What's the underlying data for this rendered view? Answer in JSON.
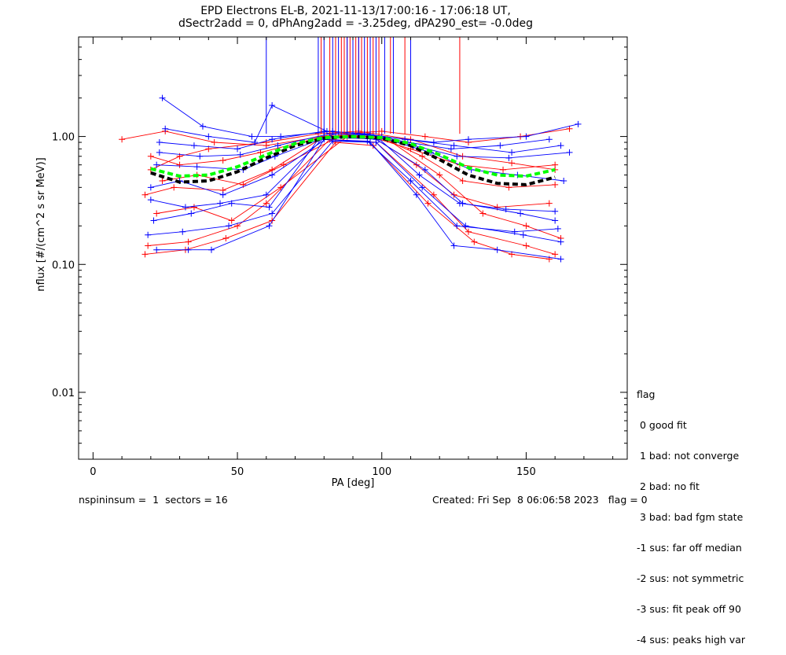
{
  "chart_data": {
    "type": "line",
    "title": "EPD Electrons EL-B, 2021-11-13/17:00:16 - 17:06:18 UT,",
    "subtitle": "dSectr2add = 0, dPhAng2add = -3.25deg, dPA290_est=  -0.0deg",
    "xlabel": "PA [deg]",
    "ylabel": "nflux [#/(cm^2 s sr MeV)]",
    "x_scale": "linear",
    "y_scale": "log",
    "xlim": [
      -5,
      185
    ],
    "ylim": [
      0.003,
      6.0
    ],
    "x_ticks": [
      "0",
      "50",
      "100",
      "150"
    ],
    "y_ticks": [
      "0.01",
      "0.10",
      "1.00"
    ],
    "colors": {
      "red": "#ff0000",
      "blue": "#0000ff",
      "fit_black": "#000000",
      "fit_green": "#00ff00"
    },
    "series": [
      {
        "color": "red",
        "x": [
          20,
          30,
          40,
          60,
          78,
          92,
          110,
          128,
          145,
          160
        ],
        "y": [
          0.55,
          0.7,
          0.8,
          0.9,
          1.05,
          1.1,
          0.95,
          0.7,
          0.62,
          0.55
        ]
      },
      {
        "color": "red",
        "x": [
          18,
          28,
          45,
          62,
          80,
          95,
          112,
          125,
          140,
          158
        ],
        "y": [
          0.35,
          0.4,
          0.38,
          0.55,
          1.0,
          1.05,
          0.6,
          0.35,
          0.28,
          0.3
        ]
      },
      {
        "color": "red",
        "x": [
          19,
          33,
          50,
          60,
          82,
          98,
          118,
          130,
          150,
          160
        ],
        "y": [
          0.14,
          0.15,
          0.2,
          0.3,
          0.95,
          0.9,
          0.35,
          0.18,
          0.14,
          0.12
        ]
      },
      {
        "color": "red",
        "x": [
          10,
          25,
          42,
          60,
          85,
          100,
          115,
          130,
          148,
          165
        ],
        "y": [
          0.95,
          1.1,
          0.9,
          0.85,
          1.05,
          1.1,
          1.0,
          0.9,
          1.0,
          1.15
        ]
      },
      {
        "color": "red",
        "x": [
          22,
          35,
          48,
          65,
          88,
          102,
          120,
          135,
          150,
          162
        ],
        "y": [
          0.25,
          0.28,
          0.22,
          0.4,
          1.0,
          0.95,
          0.5,
          0.25,
          0.2,
          0.16
        ]
      },
      {
        "color": "red",
        "x": [
          20,
          30,
          45,
          58,
          80,
          96,
          110,
          127,
          142,
          160
        ],
        "y": [
          0.7,
          0.6,
          0.65,
          0.75,
          1.0,
          1.0,
          0.8,
          0.6,
          0.55,
          0.6
        ]
      },
      {
        "color": "red",
        "x": [
          18,
          32,
          46,
          62,
          84,
          97,
          116,
          132,
          145,
          158
        ],
        "y": [
          0.12,
          0.13,
          0.16,
          0.22,
          0.9,
          0.85,
          0.3,
          0.15,
          0.12,
          0.11
        ]
      },
      {
        "color": "red",
        "x": [
          24,
          36,
          52,
          66,
          86,
          99,
          114,
          128,
          144,
          160
        ],
        "y": [
          0.45,
          0.5,
          0.42,
          0.6,
          1.02,
          1.0,
          0.7,
          0.45,
          0.4,
          0.42
        ]
      },
      {
        "color": "blue",
        "x": [
          23,
          35,
          50,
          62,
          80,
          94,
          108,
          125,
          145,
          162
        ],
        "y": [
          0.9,
          0.85,
          0.8,
          0.95,
          1.1,
          1.05,
          0.95,
          0.85,
          0.75,
          0.85
        ]
      },
      {
        "color": "blue",
        "x": [
          22,
          33,
          41,
          61,
          80,
          96,
          112,
          125,
          140,
          162
        ],
        "y": [
          0.13,
          0.13,
          0.13,
          0.2,
          0.95,
          0.9,
          0.35,
          0.14,
          0.13,
          0.11
        ]
      },
      {
        "color": "blue",
        "x": [
          20,
          30,
          45,
          62,
          82,
          98,
          115,
          128,
          148,
          160
        ],
        "y": [
          0.4,
          0.45,
          0.35,
          0.5,
          1.0,
          0.95,
          0.55,
          0.3,
          0.25,
          0.22
        ]
      },
      {
        "color": "blue",
        "x": [
          24,
          38,
          55,
          65,
          83,
          100,
          118,
          130,
          150,
          168
        ],
        "y": [
          2.0,
          1.2,
          1.0,
          1.0,
          1.1,
          1.0,
          0.9,
          0.95,
          1.0,
          1.25
        ]
      },
      {
        "color": "blue",
        "x": [
          21,
          34,
          48,
          61,
          78,
          95,
          110,
          126,
          146,
          161
        ],
        "y": [
          0.22,
          0.25,
          0.3,
          0.28,
          0.95,
          0.92,
          0.45,
          0.2,
          0.18,
          0.19
        ]
      },
      {
        "color": "blue",
        "x": [
          22,
          36,
          52,
          63,
          84,
          97,
          117,
          131,
          147,
          163
        ],
        "y": [
          0.6,
          0.58,
          0.55,
          0.7,
          1.05,
          1.02,
          0.75,
          0.55,
          0.5,
          0.45
        ]
      },
      {
        "color": "blue",
        "x": [
          20,
          32,
          44,
          60,
          80,
          99,
          113,
          127,
          143,
          160
        ],
        "y": [
          0.32,
          0.28,
          0.3,
          0.35,
          0.98,
          0.96,
          0.5,
          0.3,
          0.27,
          0.26
        ]
      },
      {
        "color": "blue",
        "x": [
          25,
          40,
          56,
          62,
          81,
          95,
          109,
          124,
          141,
          158
        ],
        "y": [
          1.15,
          1.0,
          0.9,
          1.75,
          1.1,
          1.05,
          0.9,
          0.8,
          0.85,
          0.95
        ]
      },
      {
        "color": "blue",
        "x": [
          19,
          31,
          47,
          62,
          83,
          98,
          114,
          129,
          149,
          162
        ],
        "y": [
          0.17,
          0.18,
          0.2,
          0.25,
          0.92,
          0.9,
          0.4,
          0.2,
          0.17,
          0.15
        ]
      },
      {
        "color": "blue",
        "x": [
          23,
          37,
          51,
          64,
          82,
          96,
          111,
          126,
          144,
          165
        ],
        "y": [
          0.75,
          0.7,
          0.72,
          0.85,
          1.05,
          1.03,
          0.85,
          0.7,
          0.68,
          0.75
        ]
      }
    ],
    "spikes": [
      {
        "color": "red",
        "x": [
          79,
          82,
          84,
          86,
          87,
          88,
          89,
          90,
          91,
          92,
          93,
          95,
          97,
          99,
          103,
          108,
          127
        ]
      },
      {
        "color": "blue",
        "x": [
          60,
          78,
          80,
          83,
          85,
          88,
          90,
          92,
          94,
          96,
          98,
          101,
          104,
          110
        ]
      }
    ],
    "fits": [
      {
        "name": "black",
        "color": "fit_black",
        "x": [
          20,
          30,
          40,
          50,
          60,
          70,
          80,
          90,
          100,
          110,
          120,
          130,
          140,
          150,
          160
        ],
        "y": [
          0.52,
          0.44,
          0.45,
          0.53,
          0.68,
          0.85,
          0.97,
          1.0,
          0.97,
          0.85,
          0.66,
          0.5,
          0.43,
          0.42,
          0.48
        ]
      },
      {
        "name": "green",
        "color": "fit_green",
        "x": [
          20,
          30,
          40,
          50,
          60,
          70,
          80,
          90,
          100,
          110,
          120,
          130,
          140,
          150,
          160
        ],
        "y": [
          0.56,
          0.49,
          0.5,
          0.58,
          0.72,
          0.88,
          0.98,
          1.0,
          0.98,
          0.88,
          0.72,
          0.57,
          0.5,
          0.49,
          0.55
        ]
      }
    ]
  },
  "legend": {
    "title": "flag",
    "items": [
      " 0 good fit",
      " 1 bad: not converge",
      " 2 bad: no fit",
      " 3 bad: bad fgm state",
      "-1 sus: far off median",
      "-2 sus: not symmetric",
      "-3 sus: fit peak off 90",
      "-4 sus: peaks high var"
    ]
  },
  "footer": {
    "left": "nspininsum =  1  sectors = 16",
    "right": "Created: Fri Sep  8 06:06:58 2023   flag = 0"
  }
}
